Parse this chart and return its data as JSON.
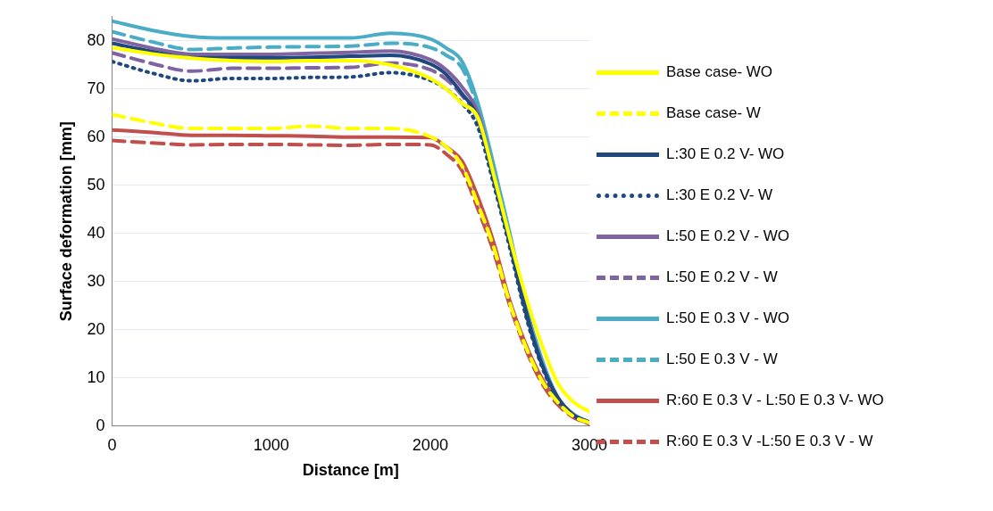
{
  "chart_data": {
    "type": "line",
    "xlabel": "Distance [m]",
    "ylabel": "Surface deformation [mm]",
    "x": [
      0,
      250,
      500,
      750,
      1000,
      1250,
      1500,
      1750,
      2000,
      2100,
      2200,
      2300,
      2400,
      2500,
      2600,
      2700,
      2800,
      2900,
      3000
    ],
    "xlim": [
      0,
      3000
    ],
    "xticks": [
      0,
      1000,
      2000,
      3000
    ],
    "ylim": [
      0,
      85
    ],
    "yticks": [
      0,
      10,
      20,
      30,
      40,
      50,
      60,
      70,
      80
    ],
    "grid": "y",
    "legend": "right",
    "marker": "none",
    "series": [
      {
        "name": "Base case- WO",
        "color": "#ffff00",
        "line_style": "solid",
        "values": [
          78.6,
          77.3,
          76.4,
          75.9,
          75.7,
          75.9,
          75.9,
          75.0,
          72.2,
          70,
          67,
          64,
          52,
          39,
          27,
          17,
          9,
          5,
          3
        ]
      },
      {
        "name": "Base case- W",
        "color": "#ffff00",
        "line_style": "dashed",
        "values": [
          64.7,
          63,
          61.8,
          61.8,
          61.8,
          62.3,
          61.8,
          61.8,
          60.1,
          58,
          54,
          46,
          37,
          25.5,
          16.5,
          9.5,
          5,
          2,
          0.7
        ]
      },
      {
        "name": "L:30 E 0.2 V- WO",
        "color": "#1f497d",
        "line_style": "solid",
        "values": [
          79.5,
          77.8,
          76.5,
          76.5,
          76.5,
          76.6,
          76.8,
          77,
          75.2,
          73,
          69,
          64,
          51,
          38,
          24,
          13,
          6,
          2.3,
          0.8
        ]
      },
      {
        "name": "L:30 E 0.2 V- W",
        "color": "#1f497d",
        "line_style": "dotted",
        "values": [
          75.7,
          73.3,
          71.7,
          72.2,
          72.2,
          72.4,
          72.5,
          73.4,
          71.8,
          70,
          67,
          62,
          50,
          37,
          23,
          12.5,
          5.5,
          2.2,
          0.8
        ]
      },
      {
        "name": "L:50 E 0.2 V - WO",
        "color": "#8064a2",
        "line_style": "solid",
        "values": [
          80.4,
          78.5,
          77.2,
          77.2,
          77.2,
          77.4,
          77.6,
          77.9,
          76.1,
          74,
          70.4,
          65,
          52,
          38.5,
          24,
          13,
          6,
          2.3,
          0.8
        ]
      },
      {
        "name": "L:50 E 0.2 V - W",
        "color": "#8064a2",
        "line_style": "dashed",
        "values": [
          77.5,
          75.3,
          73.7,
          74.3,
          74.3,
          74.4,
          74.5,
          75.4,
          74,
          72,
          68.6,
          63.5,
          51,
          38,
          23.5,
          13,
          5.8,
          2.3,
          0.8
        ]
      },
      {
        "name": "L:50 E 0.3 V - WO",
        "color": "#4bacc6",
        "line_style": "solid",
        "values": [
          84.1,
          82.2,
          80.9,
          80.6,
          80.6,
          80.6,
          80.6,
          81.6,
          80.4,
          78.5,
          75.7,
          67,
          54,
          40,
          25,
          14,
          6,
          2.5,
          0.8
        ]
      },
      {
        "name": "L:50 E 0.3 V - W",
        "color": "#4bacc6",
        "line_style": "dashed",
        "values": [
          81.9,
          79.8,
          78.2,
          78.5,
          78.7,
          78.8,
          78.9,
          79.5,
          78.6,
          77,
          74.3,
          66,
          53.5,
          39.5,
          24.5,
          13.5,
          6,
          2.4,
          0.8
        ]
      },
      {
        "name": "R:60 E 0.3 V - L:50 E 0.3 V- WO",
        "color": "#c0504d",
        "line_style": "solid",
        "values": [
          61.5,
          61,
          60.4,
          60.4,
          60.3,
          60.2,
          60,
          60,
          59.9,
          58,
          55,
          47.5,
          38,
          26,
          17,
          10,
          5,
          2,
          0.5
        ]
      },
      {
        "name": "R:60 E 0.3 V -L:50 E 0.3 V - W",
        "color": "#c0504d",
        "line_style": "dashed",
        "values": [
          59.3,
          58.8,
          58.4,
          58.5,
          58.5,
          58.4,
          58.3,
          58.5,
          58.4,
          56.5,
          53,
          45,
          36,
          25,
          16,
          9,
          4.5,
          1.8,
          0.5
        ]
      }
    ]
  }
}
